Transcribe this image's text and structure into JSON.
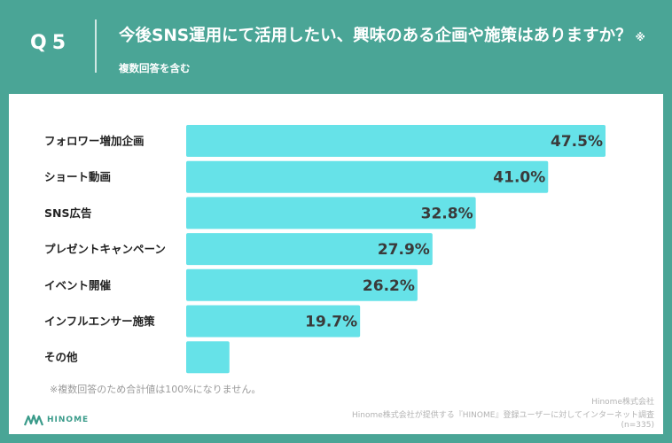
{
  "header": {
    "question": "Q5",
    "title": "今後SNS運用にて活用したい、興味のある企画や施策はありますか？",
    "note": "※複数回答を含む"
  },
  "colors": {
    "background": "#4aa596",
    "bar": "#66e2e8",
    "panel": "#ffffff"
  },
  "chart_data": {
    "type": "bar",
    "orientation": "horizontal",
    "title": "今後SNS運用にて活用したい、興味のある企画や施策はありますか？",
    "categories": [
      "フォロワー増加企画",
      "ショート動画",
      "SNS広告",
      "プレゼントキャンペーン",
      "イベント開催",
      "インフルエンサー施策",
      "その他"
    ],
    "values": [
      47.5,
      41.0,
      32.8,
      27.9,
      26.2,
      19.7,
      4.9
    ],
    "value_labels": [
      "47.5%",
      "41.0%",
      "32.8%",
      "27.9%",
      "26.2%",
      "19.7%",
      ""
    ],
    "unit": "%",
    "xlim": [
      0,
      47.5
    ],
    "grid": false
  },
  "footer": {
    "footnote": "※複数回答のため合計値は100%になりません。",
    "source_company": "Hinome株式会社",
    "source_text": "Hinome株式会社が提供する『HINOME』登録ユーザーに対してインターネット調査",
    "sample": "(n=335)",
    "logo_text": "HINOME"
  }
}
